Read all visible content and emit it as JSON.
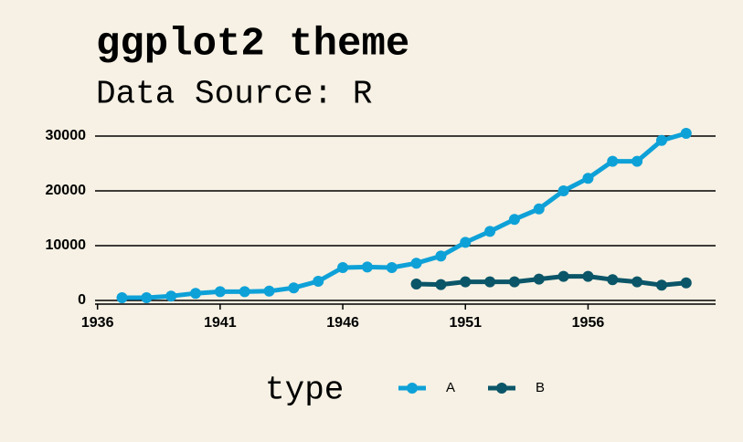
{
  "chart_data": {
    "type": "line",
    "title": "ggplot2 theme",
    "subtitle": "Data Source: R",
    "x": [
      1937,
      1938,
      1939,
      1940,
      1941,
      1942,
      1943,
      1944,
      1945,
      1946,
      1947,
      1948,
      1949,
      1950,
      1951,
      1952,
      1953,
      1954,
      1955,
      1956,
      1957,
      1958,
      1959,
      1960
    ],
    "series": [
      {
        "name": "A",
        "color": "#0ea1d8",
        "values": [
          500,
          500,
          800,
          1300,
          1600,
          1600,
          1700,
          2300,
          3500,
          6000,
          6100,
          6000,
          6800,
          8100,
          10600,
          12600,
          14800,
          16700,
          20000,
          22300,
          25400,
          25400,
          29200,
          30500
        ]
      },
      {
        "name": "B",
        "color": "#0b5568",
        "values": [
          null,
          null,
          null,
          null,
          null,
          null,
          null,
          null,
          null,
          null,
          null,
          null,
          3000,
          2900,
          3400,
          3400,
          3400,
          3900,
          4400,
          4400,
          3800,
          3400,
          2800,
          3200
        ]
      }
    ],
    "xlim": [
      1935.9,
      1961.2
    ],
    "xticks": [
      1936,
      1941,
      1946,
      1951,
      1956
    ],
    "ylim": [
      -500,
      31500
    ],
    "yticks": [
      0,
      10000,
      20000,
      30000
    ],
    "grid": true,
    "legend_title": "type",
    "legend_position": "bottom"
  }
}
